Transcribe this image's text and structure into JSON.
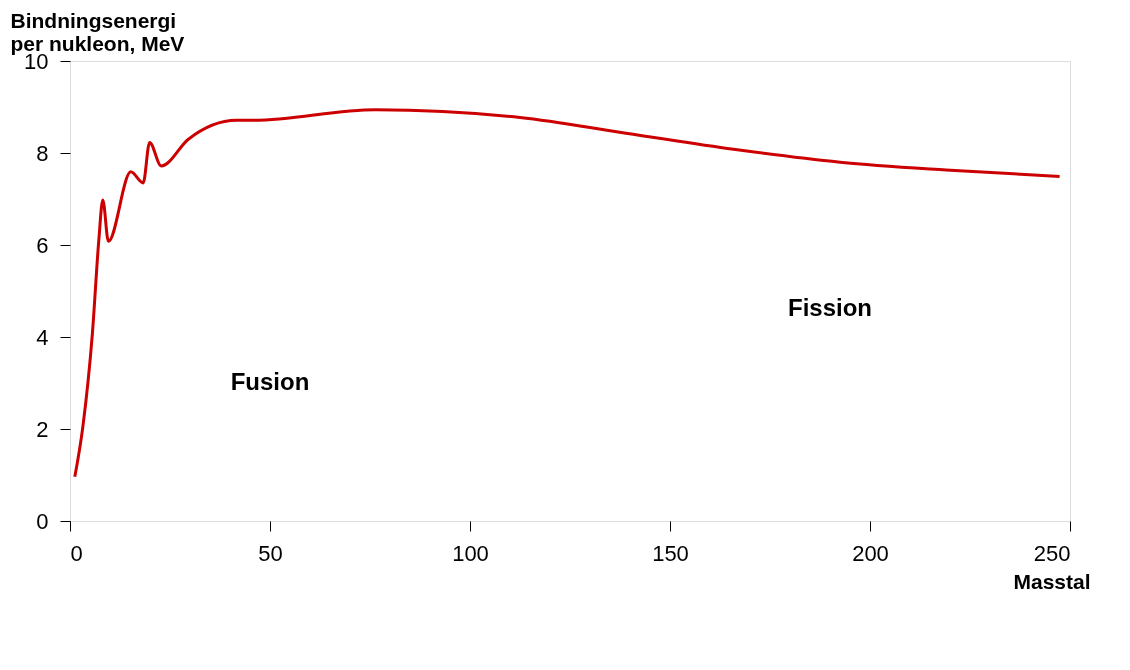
{
  "chart_data": {
    "type": "line",
    "xlabel": "Masstal",
    "ylabel": "Bindningsenergi\nper nukleon, MeV",
    "x": [
      1.2,
      3.2,
      5.6,
      7.2,
      8.2,
      9.6,
      15.2,
      18.3,
      19.9,
      22.8,
      29.6,
      41.6,
      45.7,
      76.4,
      112.5,
      139,
      165.9,
      192.5,
      219,
      247.4
    ],
    "series": [
      {
        "color": "#cc0000",
        "values": [
          0.96,
          2.04,
          4.08,
          6.1,
          6.98,
          6.08,
          7.59,
          7.35,
          8.23,
          7.72,
          8.3,
          8.71,
          8.71,
          8.94,
          8.77,
          8.43,
          8.08,
          7.8,
          7.63,
          7.49
        ]
      }
    ],
    "xlim": [
      0,
      250
    ],
    "xticks": [
      0,
      50,
      100,
      150,
      200,
      250
    ],
    "ylim": [
      0,
      10
    ],
    "yticks": [
      0,
      2,
      4,
      6,
      8,
      10
    ],
    "grid": false,
    "legend": false,
    "marker": "none",
    "line_style": "solid",
    "annotations": [
      "Fusion",
      "Fission"
    ]
  }
}
